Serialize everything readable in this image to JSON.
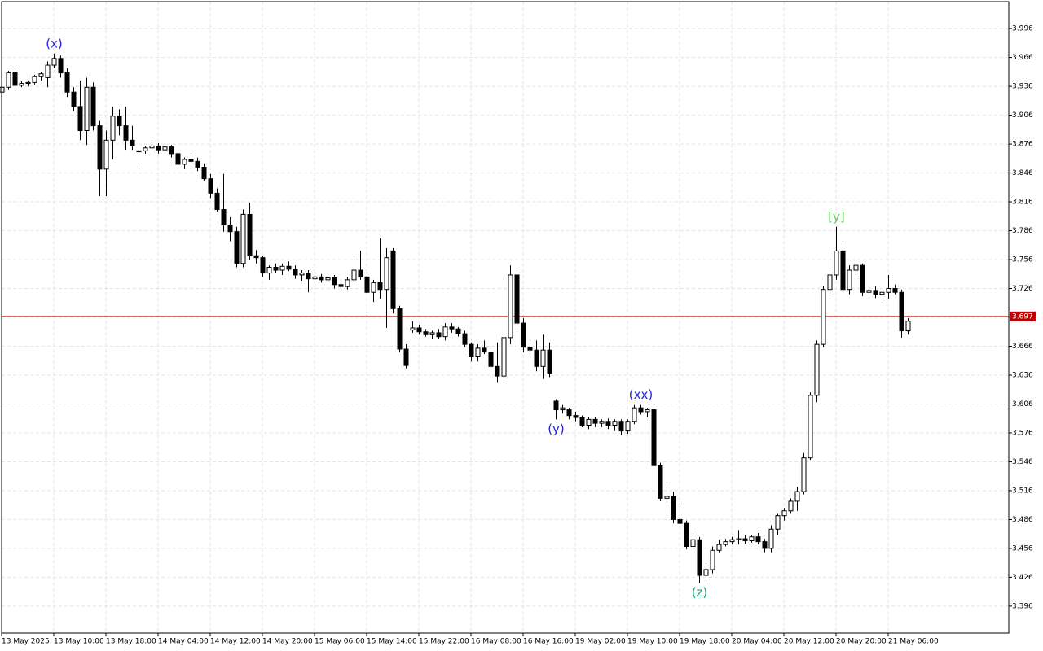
{
  "chart_data": {
    "type": "candlestick",
    "ylim": [
      3.368,
      4.024
    ],
    "yticks": [
      3.396,
      3.426,
      3.456,
      3.486,
      3.516,
      3.546,
      3.576,
      3.606,
      3.636,
      3.666,
      3.696,
      3.726,
      3.756,
      3.786,
      3.816,
      3.846,
      3.876,
      3.906,
      3.936,
      3.966,
      3.996
    ],
    "grid": true,
    "up_color": "#ffffff",
    "down_color": "#000000",
    "outline_color": "#000000",
    "last_price": 3.697,
    "last_price_color": "#c00000",
    "categories": [
      "13 May 2025",
      null,
      null,
      null,
      null,
      null,
      null,
      null,
      "13 May 10:00",
      null,
      null,
      null,
      null,
      null,
      null,
      null,
      "13 May 18:00",
      null,
      null,
      null,
      null,
      null,
      null,
      null,
      "14 May 04:00",
      null,
      null,
      null,
      null,
      null,
      null,
      null,
      "14 May 12:00",
      null,
      null,
      null,
      null,
      null,
      null,
      null,
      "14 May 20:00",
      null,
      null,
      null,
      null,
      null,
      null,
      null,
      "15 May 06:00",
      null,
      null,
      null,
      null,
      null,
      null,
      null,
      "15 May 14:00",
      null,
      null,
      null,
      null,
      null,
      null,
      null,
      "15 May 22:00",
      null,
      null,
      null,
      null,
      null,
      null,
      null,
      "16 May 08:00",
      null,
      null,
      null,
      null,
      null,
      null,
      null,
      "16 May 16:00",
      null,
      null,
      null,
      null,
      null,
      null,
      null,
      "19 May 02:00",
      null,
      null,
      null,
      null,
      null,
      null,
      null,
      "19 May 10:00",
      null,
      null,
      null,
      null,
      null,
      null,
      null,
      "19 May 18:00",
      null,
      null,
      null,
      null,
      null,
      null,
      null,
      "20 May 04:00",
      null,
      null,
      null,
      null,
      null,
      null,
      null,
      "20 May 12:00",
      null,
      null,
      null,
      null,
      null,
      null,
      null,
      "20 May 20:00",
      null,
      null,
      null,
      null,
      null,
      null,
      null,
      "21 May 06:00",
      null,
      null,
      null
    ],
    "ohlc": [
      [
        3.93,
        3.938,
        3.925,
        3.935
      ],
      [
        3.935,
        3.952,
        3.933,
        3.95
      ],
      [
        3.95,
        3.952,
        3.935,
        3.937
      ],
      [
        3.937,
        3.942,
        3.935,
        3.939
      ],
      [
        3.939,
        3.942,
        3.936,
        3.94
      ],
      [
        3.94,
        3.948,
        3.938,
        3.946
      ],
      [
        3.946,
        3.951,
        3.942,
        3.949
      ],
      [
        3.945,
        3.962,
        3.935,
        3.958
      ],
      [
        3.958,
        3.97,
        3.955,
        3.965
      ],
      [
        3.965,
        3.968,
        3.945,
        3.95
      ],
      [
        3.95,
        3.955,
        3.925,
        3.93
      ],
      [
        3.93,
        3.935,
        3.91,
        3.915
      ],
      [
        3.915,
        3.942,
        3.88,
        3.89
      ],
      [
        3.89,
        3.945,
        3.875,
        3.935
      ],
      [
        3.935,
        3.94,
        3.89,
        3.895
      ],
      [
        3.895,
        3.9,
        3.822,
        3.85
      ],
      [
        3.85,
        3.89,
        3.822,
        3.88
      ],
      [
        3.88,
        3.915,
        3.86,
        3.905
      ],
      [
        3.905,
        3.912,
        3.885,
        3.895
      ],
      [
        3.895,
        3.915,
        3.87,
        3.88
      ],
      [
        3.88,
        3.895,
        3.87,
        3.874
      ],
      [
        3.868,
        3.87,
        3.855,
        3.869
      ],
      [
        3.869,
        3.874,
        3.866,
        3.872
      ],
      [
        3.872,
        3.878,
        3.868,
        3.874
      ],
      [
        3.874,
        3.877,
        3.866,
        3.87
      ],
      [
        3.87,
        3.876,
        3.864,
        3.873
      ],
      [
        3.873,
        3.875,
        3.862,
        3.866
      ],
      [
        3.866,
        3.87,
        3.852,
        3.855
      ],
      [
        3.855,
        3.862,
        3.85,
        3.86
      ],
      [
        3.86,
        3.864,
        3.855,
        3.858
      ],
      [
        3.858,
        3.862,
        3.848,
        3.852
      ],
      [
        3.852,
        3.856,
        3.838,
        3.84
      ],
      [
        3.84,
        3.845,
        3.82,
        3.825
      ],
      [
        3.825,
        3.83,
        3.805,
        3.808
      ],
      [
        3.808,
        3.845,
        3.785,
        3.792
      ],
      [
        3.792,
        3.8,
        3.775,
        3.785
      ],
      [
        3.785,
        3.79,
        3.748,
        3.752
      ],
      [
        3.752,
        3.808,
        3.748,
        3.803
      ],
      [
        3.803,
        3.815,
        3.756,
        3.76
      ],
      [
        3.76,
        3.766,
        3.752,
        3.758
      ],
      [
        3.758,
        3.76,
        3.738,
        3.742
      ],
      [
        3.742,
        3.75,
        3.735,
        3.748
      ],
      [
        3.748,
        3.752,
        3.742,
        3.745
      ],
      [
        3.745,
        3.752,
        3.74,
        3.749
      ],
      [
        3.749,
        3.754,
        3.744,
        3.746
      ],
      [
        3.746,
        3.75,
        3.736,
        3.74
      ],
      [
        3.74,
        3.745,
        3.734,
        3.742
      ],
      [
        3.742,
        3.745,
        3.722,
        3.736
      ],
      [
        3.736,
        3.742,
        3.732,
        3.738
      ],
      [
        3.738,
        3.741,
        3.732,
        3.735
      ],
      [
        3.735,
        3.74,
        3.73,
        3.737
      ],
      [
        3.737,
        3.74,
        3.726,
        3.73
      ],
      [
        3.73,
        3.735,
        3.725,
        3.728
      ],
      [
        3.728,
        3.738,
        3.725,
        3.735
      ],
      [
        3.735,
        3.76,
        3.73,
        3.745
      ],
      [
        3.745,
        3.765,
        3.735,
        3.738
      ],
      [
        3.738,
        3.742,
        3.7,
        3.722
      ],
      [
        3.722,
        3.735,
        3.712,
        3.732
      ],
      [
        3.732,
        3.778,
        3.715,
        3.725
      ],
      [
        3.725,
        3.768,
        3.685,
        3.758
      ],
      [
        3.765,
        3.768,
        3.7,
        3.705
      ],
      [
        3.705,
        3.708,
        3.66,
        3.663
      ],
      [
        3.663,
        3.668,
        3.643,
        3.646
      ],
      [
        3.683,
        3.692,
        3.68,
        3.685
      ],
      [
        3.685,
        3.688,
        3.678,
        3.681
      ],
      [
        3.681,
        3.684,
        3.676,
        3.678
      ],
      [
        3.678,
        3.682,
        3.674,
        3.68
      ],
      [
        3.68,
        3.684,
        3.674,
        3.676
      ],
      [
        3.676,
        3.69,
        3.672,
        3.686
      ],
      [
        3.686,
        3.69,
        3.68,
        3.684
      ],
      [
        3.684,
        3.686,
        3.676,
        3.679
      ],
      [
        3.679,
        3.682,
        3.665,
        3.668
      ],
      [
        3.668,
        3.67,
        3.65,
        3.655
      ],
      [
        3.655,
        3.668,
        3.65,
        3.664
      ],
      [
        3.664,
        3.672,
        3.658,
        3.66
      ],
      [
        3.66,
        3.664,
        3.64,
        3.645
      ],
      [
        3.645,
        3.67,
        3.628,
        3.635
      ],
      [
        3.635,
        3.68,
        3.63,
        3.675
      ],
      [
        3.675,
        3.75,
        3.668,
        3.74
      ],
      [
        3.74,
        3.745,
        3.685,
        3.69
      ],
      [
        3.69,
        3.695,
        3.66,
        3.665
      ],
      [
        3.665,
        3.67,
        3.655,
        3.662
      ],
      [
        3.662,
        3.672,
        3.64,
        3.645
      ],
      [
        3.645,
        3.678,
        3.632,
        3.662
      ],
      [
        3.662,
        3.67,
        3.634,
        3.638
      ],
      [
        3.609,
        3.611,
        3.59,
        3.6
      ],
      [
        3.6,
        3.605,
        3.596,
        3.602
      ],
      [
        3.6,
        3.602,
        3.59,
        3.594
      ],
      [
        3.594,
        3.598,
        3.588,
        3.592
      ],
      [
        3.592,
        3.594,
        3.582,
        3.584
      ],
      [
        3.584,
        3.592,
        3.58,
        3.59
      ],
      [
        3.59,
        3.592,
        3.582,
        3.586
      ],
      [
        3.586,
        3.59,
        3.582,
        3.588
      ],
      [
        3.588,
        3.591,
        3.58,
        3.584
      ],
      [
        3.584,
        3.59,
        3.578,
        3.588
      ],
      [
        3.588,
        3.59,
        3.574,
        3.578
      ],
      [
        3.578,
        3.59,
        3.575,
        3.588
      ],
      [
        3.588,
        3.605,
        3.585,
        3.602
      ],
      [
        3.602,
        3.605,
        3.595,
        3.598
      ],
      [
        3.598,
        3.602,
        3.592,
        3.6
      ],
      [
        3.6,
        3.602,
        3.54,
        3.542
      ],
      [
        3.542,
        3.545,
        3.505,
        3.508
      ],
      [
        3.508,
        3.52,
        3.503,
        3.51
      ],
      [
        3.51,
        3.515,
        3.482,
        3.486
      ],
      [
        3.486,
        3.5,
        3.478,
        3.482
      ],
      [
        3.482,
        3.485,
        3.455,
        3.458
      ],
      [
        3.458,
        3.475,
        3.455,
        3.465
      ],
      [
        3.465,
        3.468,
        3.42,
        3.428
      ],
      [
        3.428,
        3.438,
        3.422,
        3.434
      ],
      [
        3.434,
        3.458,
        3.43,
        3.454
      ],
      [
        3.454,
        3.465,
        3.452,
        3.46
      ],
      [
        3.46,
        3.466,
        3.458,
        3.463
      ],
      [
        3.463,
        3.468,
        3.46,
        3.465
      ],
      [
        3.465,
        3.475,
        3.46,
        3.466
      ],
      [
        3.466,
        3.47,
        3.461,
        3.464
      ],
      [
        3.464,
        3.47,
        3.462,
        3.468
      ],
      [
        3.468,
        3.472,
        3.46,
        3.463
      ],
      [
        3.463,
        3.466,
        3.452,
        3.456
      ],
      [
        3.456,
        3.48,
        3.452,
        3.476
      ],
      [
        3.476,
        3.492,
        3.47,
        3.49
      ],
      [
        3.49,
        3.498,
        3.485,
        3.495
      ],
      [
        3.495,
        3.508,
        3.492,
        3.505
      ],
      [
        3.505,
        3.52,
        3.495,
        3.515
      ],
      [
        3.515,
        3.555,
        3.512,
        3.55
      ],
      [
        3.55,
        3.618,
        3.548,
        3.615
      ],
      [
        3.615,
        3.672,
        3.608,
        3.668
      ],
      [
        3.668,
        3.728,
        3.665,
        3.725
      ],
      [
        3.725,
        3.745,
        3.718,
        3.74
      ],
      [
        3.74,
        3.79,
        3.735,
        3.765
      ],
      [
        3.765,
        3.77,
        3.722,
        3.725
      ],
      [
        3.725,
        3.75,
        3.72,
        3.745
      ],
      [
        3.745,
        3.755,
        3.74,
        3.75
      ],
      [
        3.75,
        3.752,
        3.718,
        3.722
      ],
      [
        3.722,
        3.728,
        3.715,
        3.724
      ],
      [
        3.724,
        3.728,
        3.716,
        3.72
      ],
      [
        3.72,
        3.728,
        3.714,
        3.722
      ],
      [
        3.722,
        3.74,
        3.715,
        3.726
      ],
      [
        3.726,
        3.73,
        3.72,
        3.722
      ],
      [
        3.722,
        3.725,
        3.675,
        3.682
      ],
      [
        3.682,
        3.695,
        3.678,
        3.692
      ]
    ],
    "annotations": [
      {
        "text": "(x)",
        "index": 8,
        "position": "above",
        "color": "#2424d8"
      },
      {
        "text": "(y)",
        "index": 85,
        "position": "below",
        "color": "#2424d8"
      },
      {
        "text": "(xx)",
        "index": 98,
        "position": "above",
        "color": "#2424d8"
      },
      {
        "text": "(z)",
        "index": 107,
        "position": "below",
        "color": "#1d9e7a"
      },
      {
        "text": "[y]",
        "index": 128,
        "position": "above",
        "color": "#5cc85c"
      }
    ]
  }
}
